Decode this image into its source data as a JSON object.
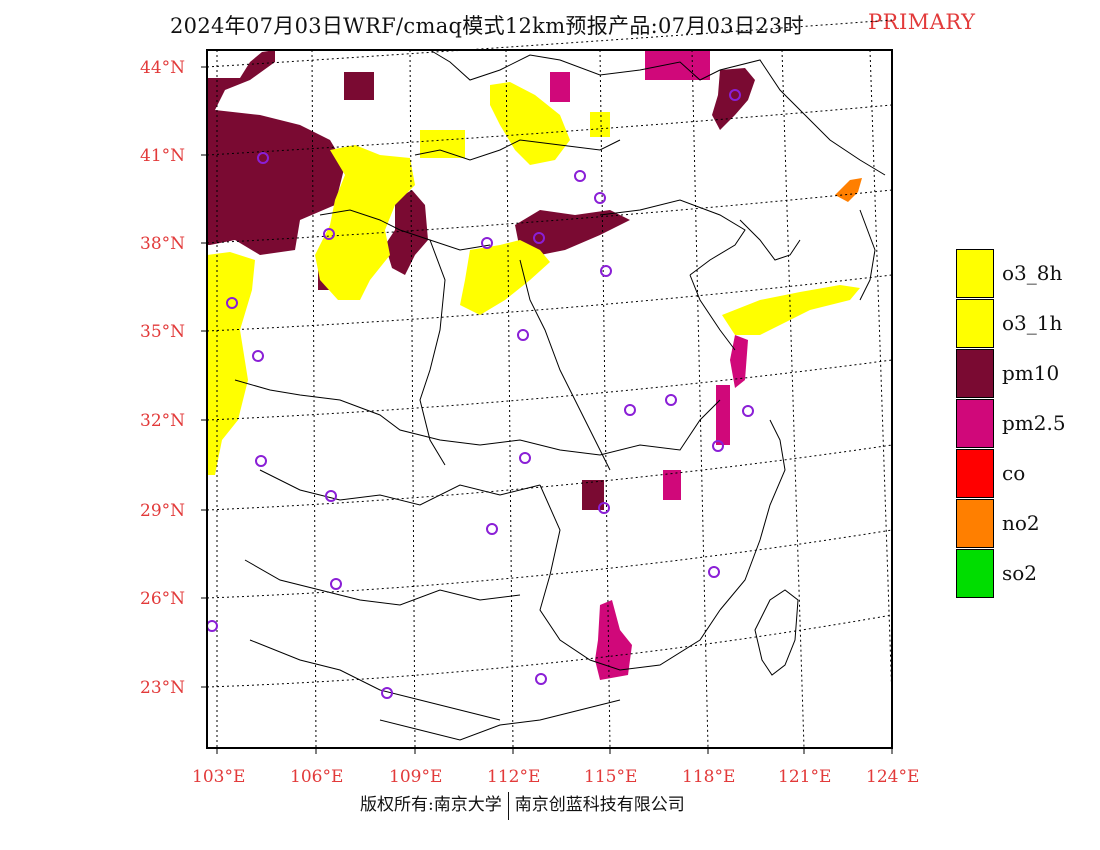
{
  "title": {
    "main": "2024年07月03日WRF/cmaq模式12km预报产品:07月03日23时",
    "tag": "PRIMARY"
  },
  "axes": {
    "lat_labels": [
      "44°N",
      "41°N",
      "38°N",
      "35°N",
      "32°N",
      "29°N",
      "26°N",
      "23°N"
    ],
    "lon_labels": [
      "103°E",
      "106°E",
      "109°E",
      "112°E",
      "115°E",
      "118°E",
      "121°E",
      "124°E"
    ]
  },
  "legend": [
    {
      "label": "o3_8h",
      "color": "#ffff00"
    },
    {
      "label": "o3_1h",
      "color": "#ffff00"
    },
    {
      "label": "pm10",
      "color": "#7a0a32"
    },
    {
      "label": "pm2.5",
      "color": "#d0087a"
    },
    {
      "label": "co",
      "color": "#ff0000"
    },
    {
      "label": "no2",
      "color": "#ff7f00"
    },
    {
      "label": "so2",
      "color": "#00dd00"
    }
  ],
  "footer": {
    "left": "版权所有:南京大学",
    "right": "南京创蓝科技有限公司"
  },
  "colors": {
    "o3": "#ffff00",
    "pm10": "#7a0a32",
    "pm25": "#d0087a",
    "no2": "#ff7f00",
    "axis_label": "#e23a3a",
    "city_marker": "#8a1fd6"
  }
}
